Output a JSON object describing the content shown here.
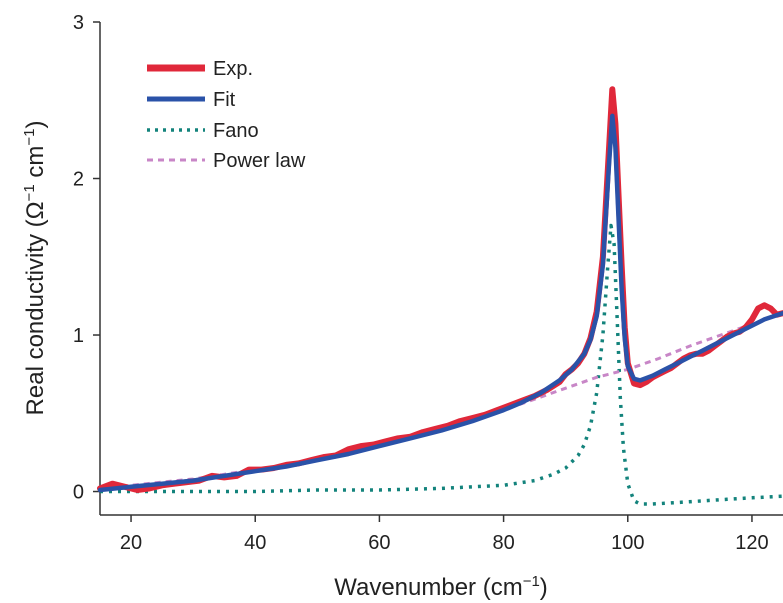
{
  "chart_data": {
    "type": "line",
    "xlabel_main": "Wavenumber (cm",
    "xlabel_sup": "−1",
    "xlabel_end": ")",
    "ylabel_main": "Real conductivity (Ω",
    "ylabel_sup1": "−1",
    "ylabel_mid": " cm",
    "ylabel_sup2": "−1",
    "ylabel_end": ")",
    "xlim": [
      15,
      125
    ],
    "ylim": [
      -0.15,
      3
    ],
    "x_ticks": [
      20,
      40,
      60,
      80,
      100,
      120
    ],
    "x_tick_labels": [
      "20",
      "40",
      "60",
      "80",
      "100",
      "120"
    ],
    "y_ticks": [
      0,
      1,
      2,
      3
    ],
    "y_tick_labels": [
      "0",
      "1",
      "2",
      "3"
    ],
    "legend_position": "top-left",
    "series": [
      {
        "name": "Exp.",
        "color": "#e0283a",
        "style": "solid",
        "width": 6,
        "points": [
          [
            15,
            0.02
          ],
          [
            17,
            0.05
          ],
          [
            19,
            0.03
          ],
          [
            21,
            0.01
          ],
          [
            23,
            0.02
          ],
          [
            25,
            0.04
          ],
          [
            27,
            0.05
          ],
          [
            29,
            0.06
          ],
          [
            31,
            0.07
          ],
          [
            33,
            0.1
          ],
          [
            35,
            0.09
          ],
          [
            37,
            0.1
          ],
          [
            39,
            0.14
          ],
          [
            41,
            0.14
          ],
          [
            43,
            0.15
          ],
          [
            45,
            0.17
          ],
          [
            47,
            0.18
          ],
          [
            49,
            0.2
          ],
          [
            51,
            0.22
          ],
          [
            53,
            0.23
          ],
          [
            55,
            0.27
          ],
          [
            57,
            0.29
          ],
          [
            59,
            0.3
          ],
          [
            61,
            0.32
          ],
          [
            63,
            0.34
          ],
          [
            65,
            0.35
          ],
          [
            67,
            0.38
          ],
          [
            69,
            0.4
          ],
          [
            71,
            0.42
          ],
          [
            73,
            0.45
          ],
          [
            75,
            0.47
          ],
          [
            77,
            0.49
          ],
          [
            79,
            0.52
          ],
          [
            81,
            0.55
          ],
          [
            83,
            0.58
          ],
          [
            85,
            0.61
          ],
          [
            87,
            0.65
          ],
          [
            89,
            0.7
          ],
          [
            90,
            0.75
          ],
          [
            91,
            0.78
          ],
          [
            92,
            0.82
          ],
          [
            93,
            0.88
          ],
          [
            94,
            0.98
          ],
          [
            95,
            1.15
          ],
          [
            96,
            1.5
          ],
          [
            97,
            2.2
          ],
          [
            97.5,
            2.57
          ],
          [
            98,
            2.35
          ],
          [
            98.5,
            1.9
          ],
          [
            99,
            1.45
          ],
          [
            99.5,
            1.05
          ],
          [
            100,
            0.82
          ],
          [
            101,
            0.69
          ],
          [
            102,
            0.68
          ],
          [
            103,
            0.7
          ],
          [
            104,
            0.73
          ],
          [
            105,
            0.75
          ],
          [
            106,
            0.77
          ],
          [
            107,
            0.79
          ],
          [
            108,
            0.82
          ],
          [
            109,
            0.85
          ],
          [
            110,
            0.87
          ],
          [
            111,
            0.88
          ],
          [
            112,
            0.88
          ],
          [
            113,
            0.9
          ],
          [
            114,
            0.93
          ],
          [
            115,
            0.96
          ],
          [
            116,
            0.99
          ],
          [
            117,
            1.01
          ],
          [
            118,
            1.02
          ],
          [
            119,
            1.05
          ],
          [
            120,
            1.1
          ],
          [
            121,
            1.17
          ],
          [
            122,
            1.19
          ],
          [
            123,
            1.17
          ],
          [
            124,
            1.13
          ],
          [
            125,
            1.14
          ]
        ]
      },
      {
        "name": "Fit",
        "color": "#2a52a8",
        "style": "solid",
        "width": 4.5,
        "points": [
          [
            15,
            0.01
          ],
          [
            20,
            0.03
          ],
          [
            25,
            0.05
          ],
          [
            30,
            0.07
          ],
          [
            35,
            0.1
          ],
          [
            40,
            0.13
          ],
          [
            45,
            0.16
          ],
          [
            50,
            0.2
          ],
          [
            55,
            0.24
          ],
          [
            60,
            0.29
          ],
          [
            65,
            0.34
          ],
          [
            70,
            0.39
          ],
          [
            75,
            0.45
          ],
          [
            80,
            0.52
          ],
          [
            83,
            0.57
          ],
          [
            86,
            0.63
          ],
          [
            89,
            0.71
          ],
          [
            91,
            0.78
          ],
          [
            93,
            0.88
          ],
          [
            94,
            0.97
          ],
          [
            95,
            1.12
          ],
          [
            96,
            1.45
          ],
          [
            97,
            2.1
          ],
          [
            97.5,
            2.4
          ],
          [
            98,
            2.2
          ],
          [
            98.5,
            1.75
          ],
          [
            99,
            1.3
          ],
          [
            99.5,
            0.98
          ],
          [
            100,
            0.8
          ],
          [
            101,
            0.72
          ],
          [
            102,
            0.71
          ],
          [
            104,
            0.74
          ],
          [
            106,
            0.78
          ],
          [
            108,
            0.82
          ],
          [
            110,
            0.86
          ],
          [
            112,
            0.9
          ],
          [
            114,
            0.94
          ],
          [
            116,
            0.98
          ],
          [
            118,
            1.02
          ],
          [
            120,
            1.06
          ],
          [
            122,
            1.1
          ],
          [
            125,
            1.14
          ]
        ]
      },
      {
        "name": "Fano",
        "color": "#13837c",
        "style": "dotted",
        "width": 3.5,
        "points": [
          [
            15,
            0.0
          ],
          [
            30,
            0.0
          ],
          [
            40,
            0.0
          ],
          [
            50,
            0.01
          ],
          [
            60,
            0.01
          ],
          [
            70,
            0.02
          ],
          [
            75,
            0.03
          ],
          [
            80,
            0.04
          ],
          [
            85,
            0.07
          ],
          [
            88,
            0.11
          ],
          [
            90,
            0.15
          ],
          [
            92,
            0.23
          ],
          [
            93,
            0.3
          ],
          [
            94,
            0.42
          ],
          [
            95,
            0.63
          ],
          [
            96,
            1.0
          ],
          [
            96.8,
            1.45
          ],
          [
            97.3,
            1.7
          ],
          [
            97.8,
            1.58
          ],
          [
            98.3,
            1.1
          ],
          [
            98.8,
            0.6
          ],
          [
            99.3,
            0.28
          ],
          [
            100,
            0.05
          ],
          [
            101,
            -0.06
          ],
          [
            102,
            -0.08
          ],
          [
            104,
            -0.08
          ],
          [
            108,
            -0.07
          ],
          [
            112,
            -0.06
          ],
          [
            116,
            -0.05
          ],
          [
            120,
            -0.04
          ],
          [
            125,
            -0.03
          ]
        ]
      },
      {
        "name": "Power law",
        "color": "#c886c7",
        "style": "dashed",
        "width": 3,
        "points": [
          [
            15,
            0.02
          ],
          [
            20,
            0.04
          ],
          [
            25,
            0.06
          ],
          [
            30,
            0.08
          ],
          [
            35,
            0.11
          ],
          [
            40,
            0.14
          ],
          [
            45,
            0.17
          ],
          [
            50,
            0.21
          ],
          [
            55,
            0.25
          ],
          [
            60,
            0.3
          ],
          [
            65,
            0.35
          ],
          [
            70,
            0.4
          ],
          [
            75,
            0.46
          ],
          [
            80,
            0.52
          ],
          [
            85,
            0.59
          ],
          [
            90,
            0.66
          ],
          [
            95,
            0.73
          ],
          [
            100,
            0.78
          ],
          [
            105,
            0.85
          ],
          [
            110,
            0.93
          ],
          [
            115,
            1.0
          ],
          [
            120,
            1.07
          ],
          [
            125,
            1.14
          ]
        ]
      }
    ]
  }
}
